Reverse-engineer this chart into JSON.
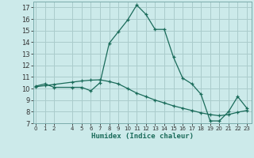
{
  "xlabel": "Humidex (Indice chaleur)",
  "bg_color": "#cceaea",
  "grid_color": "#aacccc",
  "line_color": "#1a6b5a",
  "x_ticks": [
    0,
    1,
    2,
    4,
    5,
    6,
    7,
    8,
    9,
    10,
    11,
    12,
    13,
    14,
    15,
    16,
    17,
    18,
    19,
    20,
    21,
    22,
    23
  ],
  "ylim": [
    7,
    17.5
  ],
  "xlim": [
    -0.3,
    23.5
  ],
  "yticks": [
    7,
    8,
    9,
    10,
    11,
    12,
    13,
    14,
    15,
    16,
    17
  ],
  "series1_x": [
    0,
    1,
    2,
    4,
    5,
    6,
    7,
    8,
    9,
    10,
    11,
    12,
    13,
    14,
    15,
    16,
    17,
    18,
    19,
    20,
    21,
    22,
    23
  ],
  "series1_y": [
    10.2,
    10.4,
    10.1,
    10.1,
    10.1,
    9.8,
    10.5,
    13.9,
    14.9,
    15.9,
    17.2,
    16.4,
    15.1,
    15.1,
    12.7,
    10.9,
    10.4,
    9.5,
    7.2,
    7.2,
    8.0,
    9.3,
    8.3
  ],
  "series2_x": [
    0,
    1,
    2,
    4,
    5,
    6,
    7,
    8,
    9,
    10,
    11,
    12,
    13,
    14,
    15,
    16,
    17,
    18,
    19,
    20,
    21,
    22,
    23
  ],
  "series2_y": [
    10.15,
    10.25,
    10.35,
    10.55,
    10.65,
    10.72,
    10.75,
    10.6,
    10.4,
    10.0,
    9.6,
    9.3,
    9.0,
    8.75,
    8.5,
    8.3,
    8.1,
    7.9,
    7.75,
    7.65,
    7.75,
    7.95,
    8.1
  ]
}
